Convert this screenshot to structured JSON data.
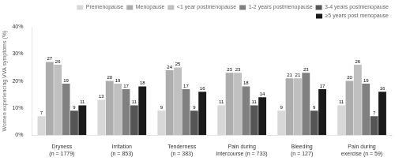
{
  "chart_data": {
    "type": "bar",
    "categories": [
      "Dryness\n(n = 1779)",
      "Irritation\n(n = 853)",
      "Tenderness\n(n = 383)",
      "Pain during\nintercourse (n = 733)",
      "Bleeding\n(n = 127)",
      "Pain during\nexercise (n = 59)"
    ],
    "series": [
      {
        "name": "Premenopause",
        "color": "#d8d8d8",
        "values": [
          7,
          13,
          9,
          11,
          9,
          11
        ]
      },
      {
        "name": "Menopause",
        "color": "#adadad",
        "values": [
          27,
          20,
          24,
          23,
          21,
          20
        ]
      },
      {
        "name": "<1 year postmenopause",
        "color": "#c0c0c0",
        "values": [
          26,
          19,
          25,
          23,
          21,
          26
        ]
      },
      {
        "name": "1-2 years postmenopause",
        "color": "#808080",
        "values": [
          19,
          17,
          17,
          18,
          23,
          19
        ]
      },
      {
        "name": "3-4 years postmenopause",
        "color": "#555555",
        "values": [
          9,
          11,
          9,
          11,
          9,
          7
        ]
      },
      {
        "name": "≥5 years post menopause",
        "color": "#1a1a1a",
        "values": [
          11,
          18,
          16,
          14,
          17,
          16
        ]
      }
    ],
    "ylabel": "Women experiencing VVA symptoms (%)",
    "ylim": [
      0,
      40
    ],
    "yticks": [
      {
        "value": 0,
        "label": "0%"
      },
      {
        "value": 10,
        "label": "10%"
      },
      {
        "value": 20,
        "label": "20%"
      },
      {
        "value": 30,
        "label": "30%"
      },
      {
        "value": 40,
        "label": "40%"
      }
    ],
    "grid": false,
    "legend": "upper right",
    "data_labels": true
  }
}
